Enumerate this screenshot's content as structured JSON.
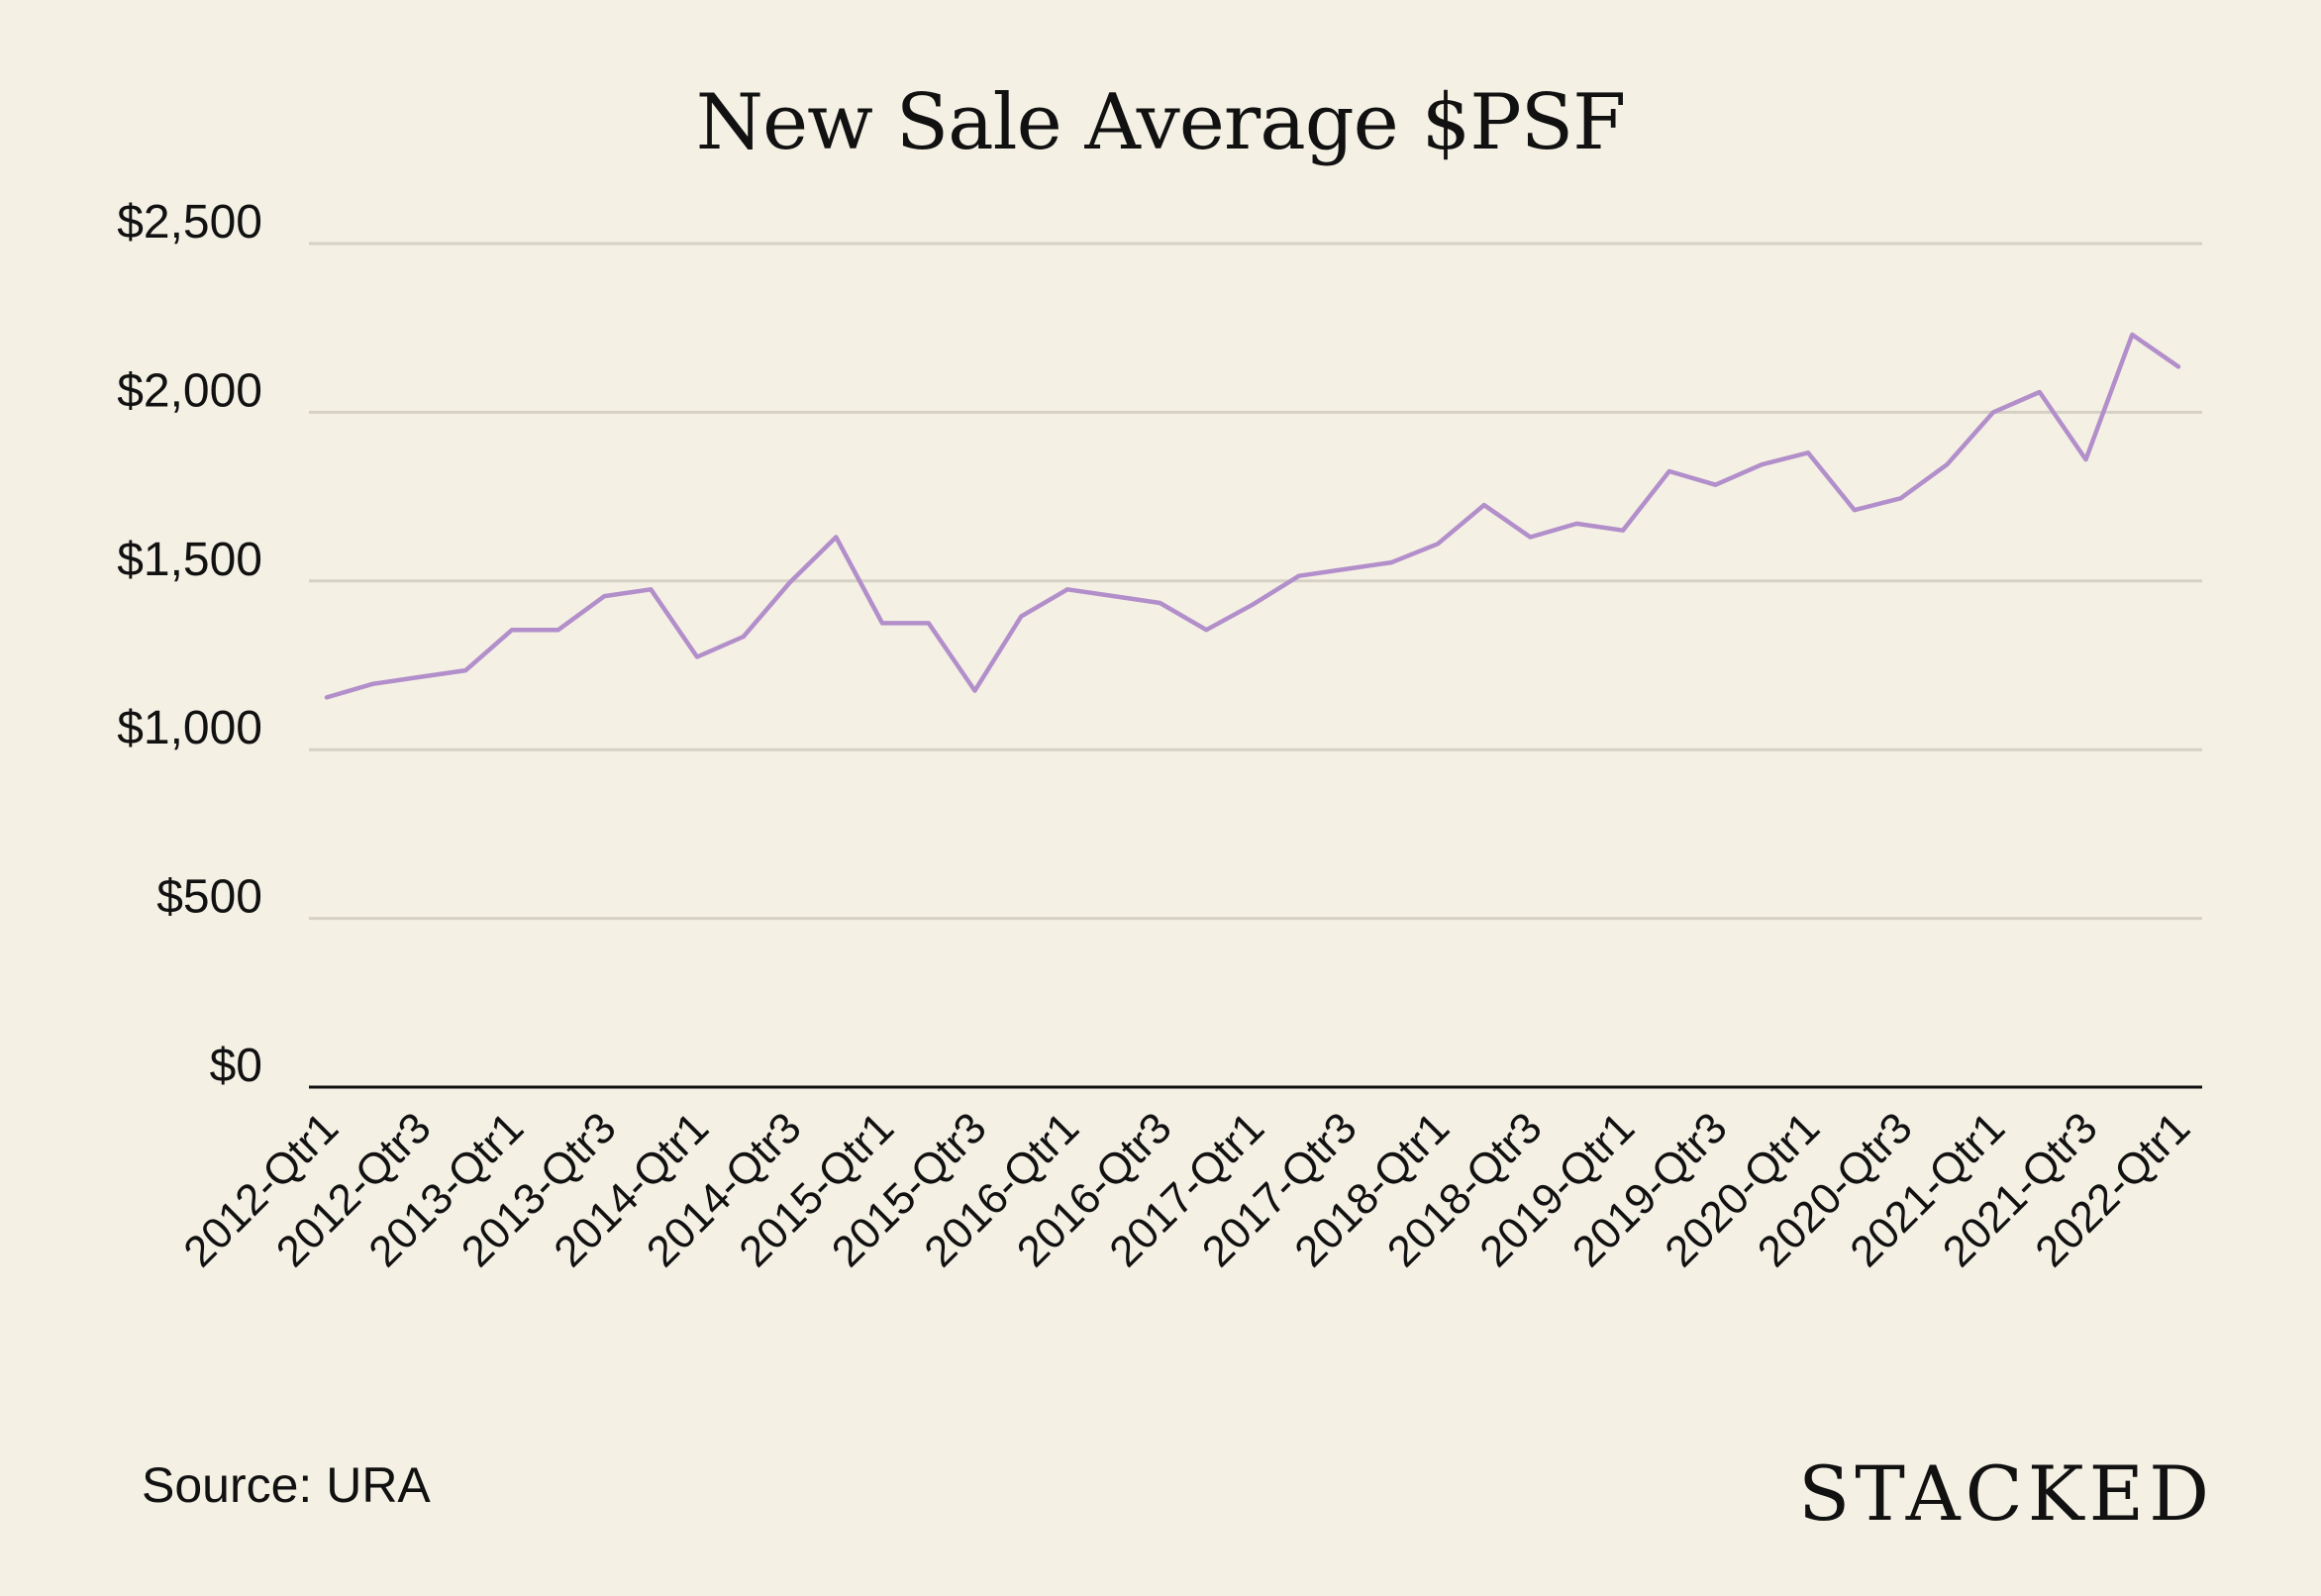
{
  "chart_data": {
    "type": "line",
    "title": "New Sale Average $PSF",
    "ylim": [
      0,
      2500
    ],
    "yticks": [
      0,
      500,
      1000,
      1500,
      2000,
      2500
    ],
    "ytick_labels": [
      "$0",
      "$500",
      "$1,000",
      "$1,500",
      "$2,000",
      "$2,500"
    ],
    "grid": true,
    "line_color": "#B28FCA",
    "x": [
      "2012-Qtr1",
      "2012-Qtr2",
      "2012-Qtr3",
      "2012-Qtr4",
      "2013-Qtr1",
      "2013-Qtr2",
      "2013-Qtr3",
      "2013-Qtr4",
      "2014-Qtr1",
      "2014-Qtr2",
      "2014-Qtr3",
      "2014-Qtr4",
      "2015-Qtr1",
      "2015-Qtr2",
      "2015-Qtr3",
      "2015-Qtr4",
      "2016-Qtr1",
      "2016-Qtr2",
      "2016-Qtr3",
      "2016-Qtr4",
      "2017-Qtr1",
      "2017-Qtr2",
      "2017-Qtr3",
      "2017-Qtr4",
      "2018-Qtr1",
      "2018-Qtr2",
      "2018-Qtr3",
      "2018-Qtr4",
      "2019-Qtr1",
      "2019-Qtr2",
      "2019-Qtr3",
      "2019-Qtr4",
      "2020-Qtr1",
      "2020-Qtr2",
      "2020-Qtr3",
      "2020-Qtr4",
      "2021-Qtr1",
      "2021-Qtr2",
      "2021-Qtr3",
      "2021-Qtr4",
      "2022-Qtr1"
    ],
    "xtick_labels": [
      "2012-Qtr1",
      "2012-Qtr3",
      "2013-Qtr1",
      "2013-Qtr3",
      "2014-Qtr1",
      "2014-Qtr3",
      "2015-Qtr1",
      "2015-Qtr3",
      "2016-Qtr1",
      "2016-Qtr3",
      "2017-Qtr1",
      "2017-Qtr3",
      "2018-Qtr1",
      "2018-Qtr3",
      "2019-Qtr1",
      "2019-Qtr3",
      "2020-Qtr1",
      "2020-Qtr3",
      "2021-Qtr1",
      "2021-Qtr3",
      "2022-Qtr1"
    ],
    "series": [
      {
        "values": [
          1155,
          1195,
          1215,
          1235,
          1355,
          1355,
          1455,
          1475,
          1275,
          1335,
          1495,
          1630,
          1375,
          1375,
          1175,
          1395,
          1475,
          1455,
          1435,
          1355,
          1430,
          1515,
          1535,
          1555,
          1610,
          1725,
          1630,
          1670,
          1650,
          1825,
          1785,
          1845,
          1880,
          1710,
          1745,
          1845,
          2000,
          2060,
          1860,
          2230,
          2135
        ]
      }
    ]
  },
  "source": "Source: URA",
  "brand": "STACKED"
}
